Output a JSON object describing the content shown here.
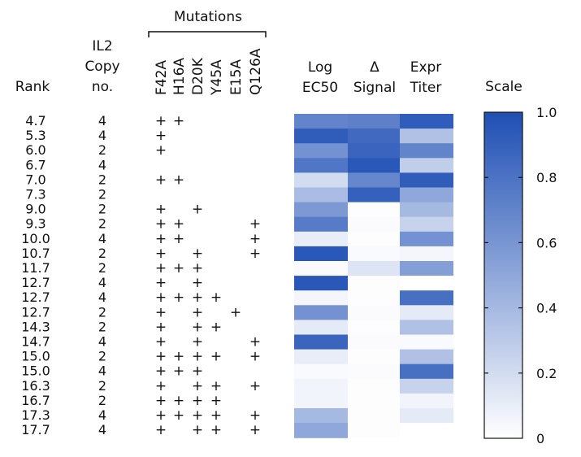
{
  "chart_data": {
    "type": "heatmap",
    "headers": {
      "mutations_group": "Mutations",
      "rank": "Rank",
      "il2_line1": "IL2",
      "il2_line2": "Copy",
      "il2_line3": "no.",
      "mutations": [
        "F42A",
        "H16A",
        "D20K",
        "Y45A",
        "E15A",
        "Q126A"
      ],
      "log_line1": "Log",
      "log_line2": "EC50",
      "delta_line1": "Δ",
      "delta_line2": "Signal",
      "expr_line1": "Expr",
      "expr_line2": "Titer",
      "scale": "Scale"
    },
    "rows": [
      {
        "rank": "4.7",
        "copy": "4",
        "muts": [
          1,
          1,
          0,
          0,
          0,
          0
        ],
        "log_ec50": 0.7,
        "delta_signal": 0.72,
        "expr_titer": 0.92
      },
      {
        "rank": "5.3",
        "copy": "4",
        "muts": [
          1,
          0,
          0,
          0,
          0,
          0
        ],
        "log_ec50": 0.92,
        "delta_signal": 0.85,
        "expr_titer": 0.35
      },
      {
        "rank": "6.0",
        "copy": "2",
        "muts": [
          1,
          0,
          0,
          0,
          0,
          0
        ],
        "log_ec50": 0.62,
        "delta_signal": 0.88,
        "expr_titer": 0.7
      },
      {
        "rank": "6.7",
        "copy": "4",
        "muts": [
          0,
          0,
          0,
          0,
          0,
          0
        ],
        "log_ec50": 0.78,
        "delta_signal": 0.95,
        "expr_titer": 0.28
      },
      {
        "rank": "7.0",
        "copy": "2",
        "muts": [
          1,
          1,
          0,
          0,
          0,
          0
        ],
        "log_ec50": 0.2,
        "delta_signal": 0.68,
        "expr_titer": 0.92
      },
      {
        "rank": "7.3",
        "copy": "2",
        "muts": [
          0,
          0,
          0,
          0,
          0,
          0
        ],
        "log_ec50": 0.38,
        "delta_signal": 0.9,
        "expr_titer": 0.5
      },
      {
        "rank": "9.0",
        "copy": "2",
        "muts": [
          1,
          0,
          1,
          0,
          0,
          0
        ],
        "log_ec50": 0.58,
        "delta_signal": 0.01,
        "expr_titer": 0.4
      },
      {
        "rank": "9.3",
        "copy": "2",
        "muts": [
          1,
          1,
          0,
          0,
          0,
          1
        ],
        "log_ec50": 0.75,
        "delta_signal": 0.02,
        "expr_titer": 0.25
      },
      {
        "rank": "10.0",
        "copy": "4",
        "muts": [
          1,
          1,
          0,
          0,
          0,
          1
        ],
        "log_ec50": 0.1,
        "delta_signal": 0.01,
        "expr_titer": 0.62
      },
      {
        "rank": "10.7",
        "copy": "2",
        "muts": [
          1,
          0,
          1,
          0,
          0,
          1
        ],
        "log_ec50": 0.95,
        "delta_signal": 0.03,
        "expr_titer": 0.05
      },
      {
        "rank": "11.7",
        "copy": "2",
        "muts": [
          1,
          1,
          1,
          0,
          0,
          0
        ],
        "log_ec50": 0.02,
        "delta_signal": 0.15,
        "expr_titer": 0.55
      },
      {
        "rank": "12.7",
        "copy": "4",
        "muts": [
          1,
          0,
          1,
          0,
          0,
          0
        ],
        "log_ec50": 0.95,
        "delta_signal": 0.01,
        "expr_titer": 0.0
      },
      {
        "rank": "12.7",
        "copy": "4",
        "muts": [
          1,
          1,
          1,
          1,
          0,
          0
        ],
        "log_ec50": 0.05,
        "delta_signal": 0.01,
        "expr_titer": 0.82
      },
      {
        "rank": "12.7",
        "copy": "2",
        "muts": [
          1,
          0,
          1,
          0,
          1,
          0
        ],
        "log_ec50": 0.62,
        "delta_signal": 0.02,
        "expr_titer": 0.12
      },
      {
        "rank": "14.3",
        "copy": "2",
        "muts": [
          1,
          0,
          1,
          1,
          0,
          0
        ],
        "log_ec50": 0.12,
        "delta_signal": 0.01,
        "expr_titer": 0.35
      },
      {
        "rank": "14.7",
        "copy": "4",
        "muts": [
          1,
          0,
          1,
          0,
          0,
          1
        ],
        "log_ec50": 0.88,
        "delta_signal": 0.02,
        "expr_titer": 0.03
      },
      {
        "rank": "15.0",
        "copy": "2",
        "muts": [
          1,
          1,
          1,
          1,
          0,
          1
        ],
        "log_ec50": 0.1,
        "delta_signal": 0.01,
        "expr_titer": 0.35
      },
      {
        "rank": "15.0",
        "copy": "4",
        "muts": [
          1,
          1,
          1,
          0,
          0,
          0
        ],
        "log_ec50": 0.03,
        "delta_signal": 0.02,
        "expr_titer": 0.82
      },
      {
        "rank": "16.3",
        "copy": "2",
        "muts": [
          1,
          0,
          1,
          1,
          0,
          1
        ],
        "log_ec50": 0.06,
        "delta_signal": 0.01,
        "expr_titer": 0.25
      },
      {
        "rank": "16.7",
        "copy": "2",
        "muts": [
          1,
          1,
          1,
          1,
          0,
          0
        ],
        "log_ec50": 0.06,
        "delta_signal": 0.01,
        "expr_titer": 0.06
      },
      {
        "rank": "17.3",
        "copy": "4",
        "muts": [
          1,
          1,
          1,
          1,
          0,
          1
        ],
        "log_ec50": 0.4,
        "delta_signal": 0.01,
        "expr_titer": 0.12
      },
      {
        "rank": "17.7",
        "copy": "4",
        "muts": [
          1,
          0,
          1,
          1,
          0,
          1
        ],
        "log_ec50": 0.5,
        "delta_signal": 0.01,
        "expr_titer": 0.0
      }
    ],
    "mark_symbol": "+",
    "color_scale": {
      "min": 0,
      "max": 1,
      "low_color": "#ffffff",
      "high_color": "#1f4fb4"
    },
    "colorbar_ticks": [
      "0",
      "0.2",
      "0.4",
      "0.6",
      "0.8",
      "1.0"
    ],
    "colorbar_tick_values": [
      0,
      0.2,
      0.4,
      0.6,
      0.8,
      1.0
    ]
  }
}
